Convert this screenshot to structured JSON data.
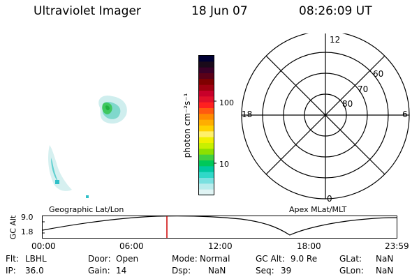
{
  "header": {
    "instrument": "Ultraviolet Imager",
    "date": "18 Jun 07",
    "time": "08:26:09 UT"
  },
  "colorbar": {
    "unit_label": "photon cm⁻²s⁻¹",
    "tick_labels": [
      "100",
      "10"
    ],
    "colors": [
      "#000033",
      "#1a0a1a",
      "#3a0028",
      "#5a0018",
      "#800000",
      "#a00010",
      "#c8002a",
      "#e0102a",
      "#ff2020",
      "#ff5a10",
      "#ff8a00",
      "#ffae00",
      "#ffd200",
      "#fff06a",
      "#f0f000",
      "#c8f000",
      "#8ce000",
      "#40d040",
      "#00c85a",
      "#00c8a0",
      "#30d8c8",
      "#7ae0e0",
      "#b8ecec",
      "#e0f4f4"
    ]
  },
  "polar_plot": {
    "hour_labels": [
      "12",
      "18",
      "6",
      "0"
    ],
    "lat_labels": [
      "60",
      "70",
      "80"
    ]
  },
  "timeline": {
    "left_title": "Geographic Lat/Lon",
    "right_title": "Apex MLat/MLT",
    "axis_label": "GC Alt",
    "y_labels": [
      "9.0",
      "1.8"
    ],
    "x_labels": [
      "00:00",
      "06:00",
      "12:00",
      "18:00",
      "23:59"
    ],
    "current_time_fraction": 0.351,
    "marker_color": "#cc0000"
  },
  "status": {
    "row1": [
      {
        "label": "Flt:",
        "value": "LBHL"
      },
      {
        "label": "Door:",
        "value": "Open"
      },
      {
        "label": "Mode:",
        "value": "Normal"
      },
      {
        "label": "GC Alt:",
        "value": "9.0 Re"
      },
      {
        "label": "GLat:",
        "value": "NaN"
      }
    ],
    "row2": [
      {
        "label": "IP:",
        "value": "36.0"
      },
      {
        "label": "Gain:",
        "value": "14"
      },
      {
        "label": "Dsp:",
        "value": "NaN"
      },
      {
        "label": "Seq:",
        "value": "39"
      },
      {
        "label": "GLon:",
        "value": "NaN"
      }
    ]
  }
}
